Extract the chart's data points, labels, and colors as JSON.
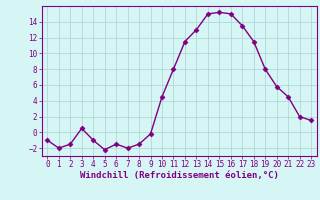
{
  "x": [
    0,
    1,
    2,
    3,
    4,
    5,
    6,
    7,
    8,
    9,
    10,
    11,
    12,
    13,
    14,
    15,
    16,
    17,
    18,
    19,
    20,
    21,
    22,
    23
  ],
  "y": [
    -1,
    -2,
    -1.5,
    0.5,
    -1,
    -2.2,
    -1.5,
    -2,
    -1.5,
    -0.2,
    4.5,
    8,
    11.5,
    13,
    15,
    15.2,
    15,
    13.5,
    11.5,
    8,
    5.8,
    4.5,
    2,
    1.5
  ],
  "line_color": "#800080",
  "marker": "D",
  "markersize": 2.5,
  "linewidth": 1.0,
  "bg_color": "#d6f5f5",
  "grid_color": "#b0d8d8",
  "xlabel": "Windchill (Refroidissement éolien,°C)",
  "xlabel_color": "#800080",
  "tick_color": "#800080",
  "spine_color": "#800080",
  "ylim": [
    -3,
    16
  ],
  "xlim": [
    -0.5,
    23.5
  ],
  "yticks": [
    -2,
    0,
    2,
    4,
    6,
    8,
    10,
    12,
    14
  ],
  "xticks": [
    0,
    1,
    2,
    3,
    4,
    5,
    6,
    7,
    8,
    9,
    10,
    11,
    12,
    13,
    14,
    15,
    16,
    17,
    18,
    19,
    20,
    21,
    22,
    23
  ],
  "tick_fontsize": 5.5,
  "xlabel_fontsize": 6.5
}
